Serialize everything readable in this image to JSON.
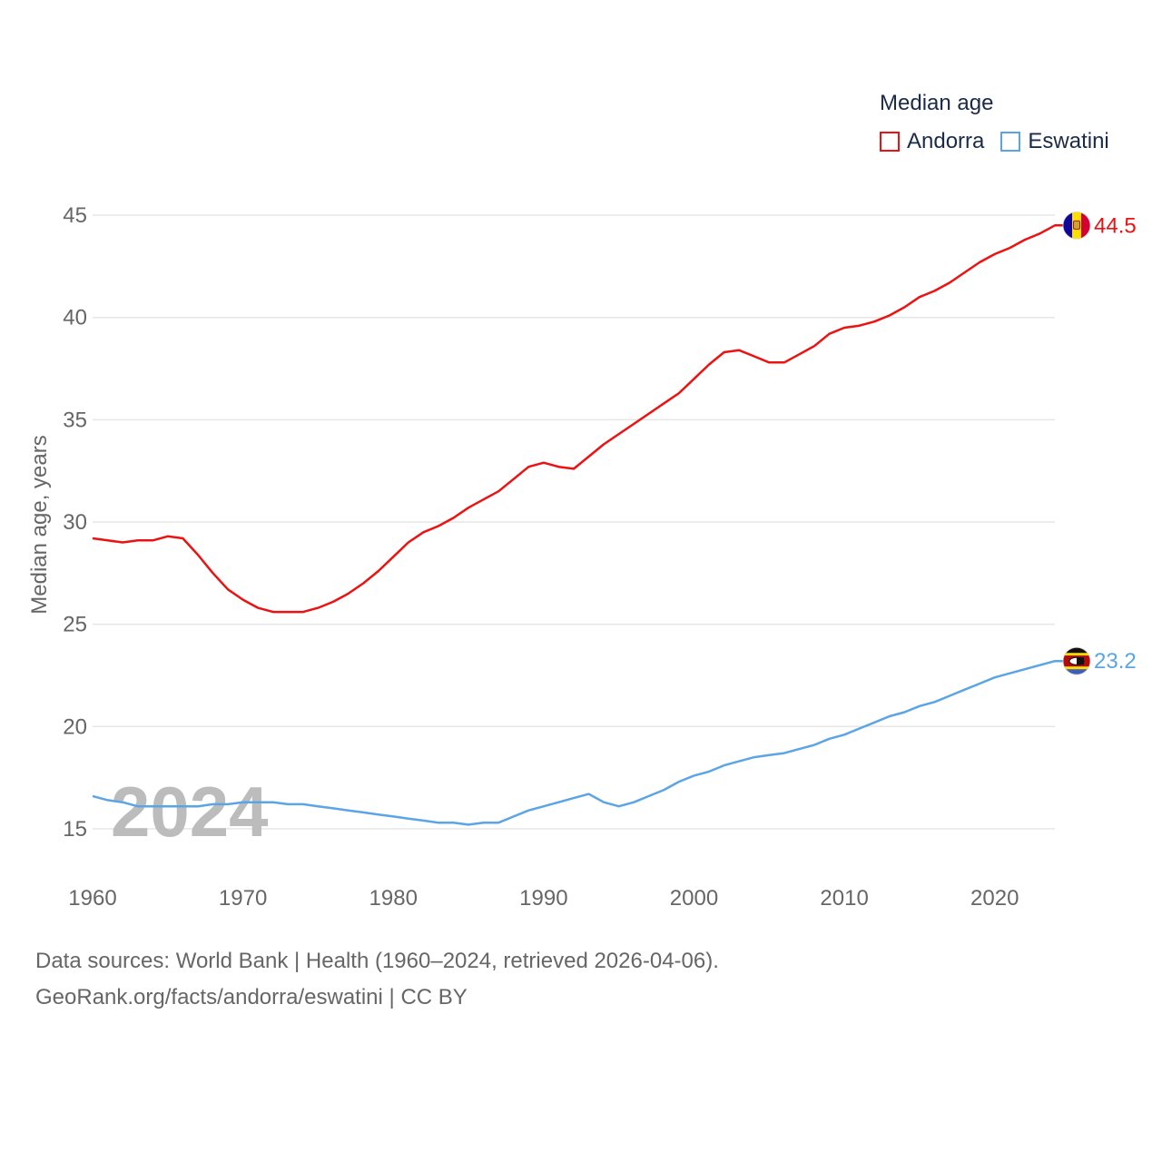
{
  "legend": {
    "title": "Median age",
    "items": [
      {
        "label": "Andorra",
        "color": "#ee1111"
      },
      {
        "label": "Eswatini",
        "color": "#5ba4e5"
      }
    ]
  },
  "watermark_year": "2024",
  "footer": {
    "source": "Data sources: World Bank | Health (1960–2024, retrieved 2026-04-06).",
    "link": "GeoRank.org/facts/andorra/eswatini",
    "license": " | CC BY"
  },
  "chart_data": {
    "type": "line",
    "title": "Median age",
    "xlabel": "",
    "ylabel": "Median age, years",
    "xlim": [
      1960,
      2024
    ],
    "ylim": [
      13,
      47
    ],
    "x_ticks": [
      1960,
      1970,
      1980,
      1990,
      2000,
      2010,
      2020
    ],
    "y_ticks": [
      15,
      20,
      25,
      30,
      35,
      40,
      45
    ],
    "grid": true,
    "legend_position": "top-right",
    "x": [
      1960,
      1961,
      1962,
      1963,
      1964,
      1965,
      1966,
      1967,
      1968,
      1969,
      1970,
      1971,
      1972,
      1973,
      1974,
      1975,
      1976,
      1977,
      1978,
      1979,
      1980,
      1981,
      1982,
      1983,
      1984,
      1985,
      1986,
      1987,
      1988,
      1989,
      1990,
      1991,
      1992,
      1993,
      1994,
      1995,
      1996,
      1997,
      1998,
      1999,
      2000,
      2001,
      2002,
      2003,
      2004,
      2005,
      2006,
      2007,
      2008,
      2009,
      2010,
      2011,
      2012,
      2013,
      2014,
      2015,
      2016,
      2017,
      2018,
      2019,
      2020,
      2021,
      2022,
      2023,
      2024
    ],
    "series": [
      {
        "name": "Andorra",
        "color": "#ee1111",
        "end_label": "44.5",
        "values": [
          29.2,
          29.1,
          29.0,
          29.1,
          29.1,
          29.3,
          29.2,
          28.4,
          27.5,
          26.7,
          26.2,
          25.8,
          25.6,
          25.6,
          25.6,
          25.8,
          26.1,
          26.5,
          27.0,
          27.6,
          28.3,
          29.0,
          29.5,
          29.8,
          30.2,
          30.7,
          31.1,
          31.5,
          32.1,
          32.7,
          32.9,
          32.7,
          32.6,
          33.2,
          33.8,
          34.3,
          34.8,
          35.3,
          35.8,
          36.3,
          37.0,
          37.7,
          38.3,
          38.4,
          38.1,
          37.8,
          37.8,
          38.2,
          38.6,
          39.2,
          39.5,
          39.6,
          39.8,
          40.1,
          40.5,
          41.0,
          41.3,
          41.7,
          42.2,
          42.7,
          43.1,
          43.4,
          43.8,
          44.1,
          44.5
        ]
      },
      {
        "name": "Eswatini",
        "color": "#5ba4e5",
        "end_label": "23.2",
        "values": [
          16.6,
          16.4,
          16.3,
          16.1,
          16.1,
          16.1,
          16.1,
          16.1,
          16.2,
          16.2,
          16.3,
          16.3,
          16.3,
          16.2,
          16.2,
          16.1,
          16.0,
          15.9,
          15.8,
          15.7,
          15.6,
          15.5,
          15.4,
          15.3,
          15.3,
          15.2,
          15.3,
          15.3,
          15.6,
          15.9,
          16.1,
          16.3,
          16.5,
          16.7,
          16.3,
          16.1,
          16.3,
          16.6,
          16.9,
          17.3,
          17.6,
          17.8,
          18.1,
          18.3,
          18.5,
          18.6,
          18.7,
          18.9,
          19.1,
          19.4,
          19.6,
          19.9,
          20.2,
          20.5,
          20.7,
          21.0,
          21.2,
          21.5,
          21.8,
          22.1,
          22.4,
          22.6,
          22.8,
          23.0,
          23.2
        ]
      }
    ]
  }
}
